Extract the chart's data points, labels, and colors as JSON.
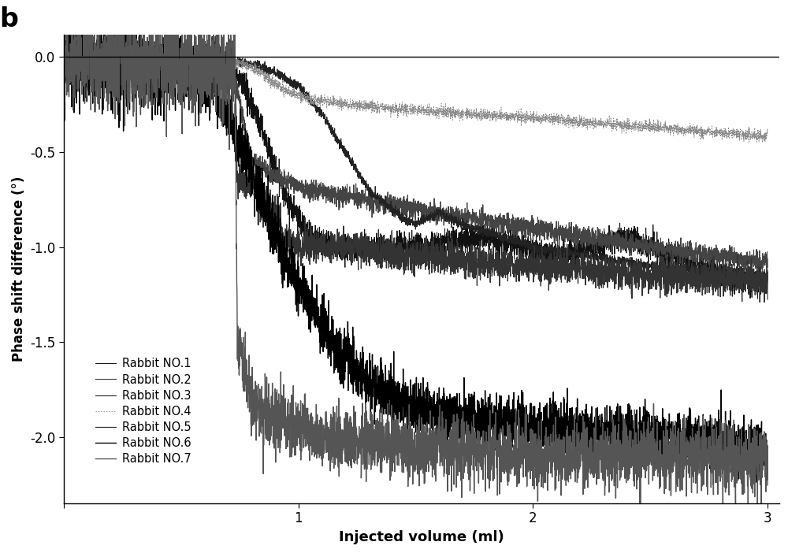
{
  "title_label": "b",
  "xlabel": "Injected volume (ml)",
  "ylabel": "Phase shift difference (°)",
  "xlim": [
    0,
    3.05
  ],
  "ylim": [
    -2.35,
    0.12
  ],
  "yticks": [
    0.0,
    -0.5,
    -1.0,
    -1.5,
    -2.0
  ],
  "xticks": [
    0,
    1,
    2,
    3
  ],
  "xtick_labels": [
    "",
    "1",
    "2",
    "3"
  ],
  "legend_labels": [
    "Rabbit NO.1",
    "Rabbit NO.2",
    "Rabbit NO.3",
    "Rabbit NO.4",
    "Rabbit NO.5",
    "Rabbit NO.6",
    "Rabbit NO.7"
  ],
  "background_color": "#ffffff"
}
